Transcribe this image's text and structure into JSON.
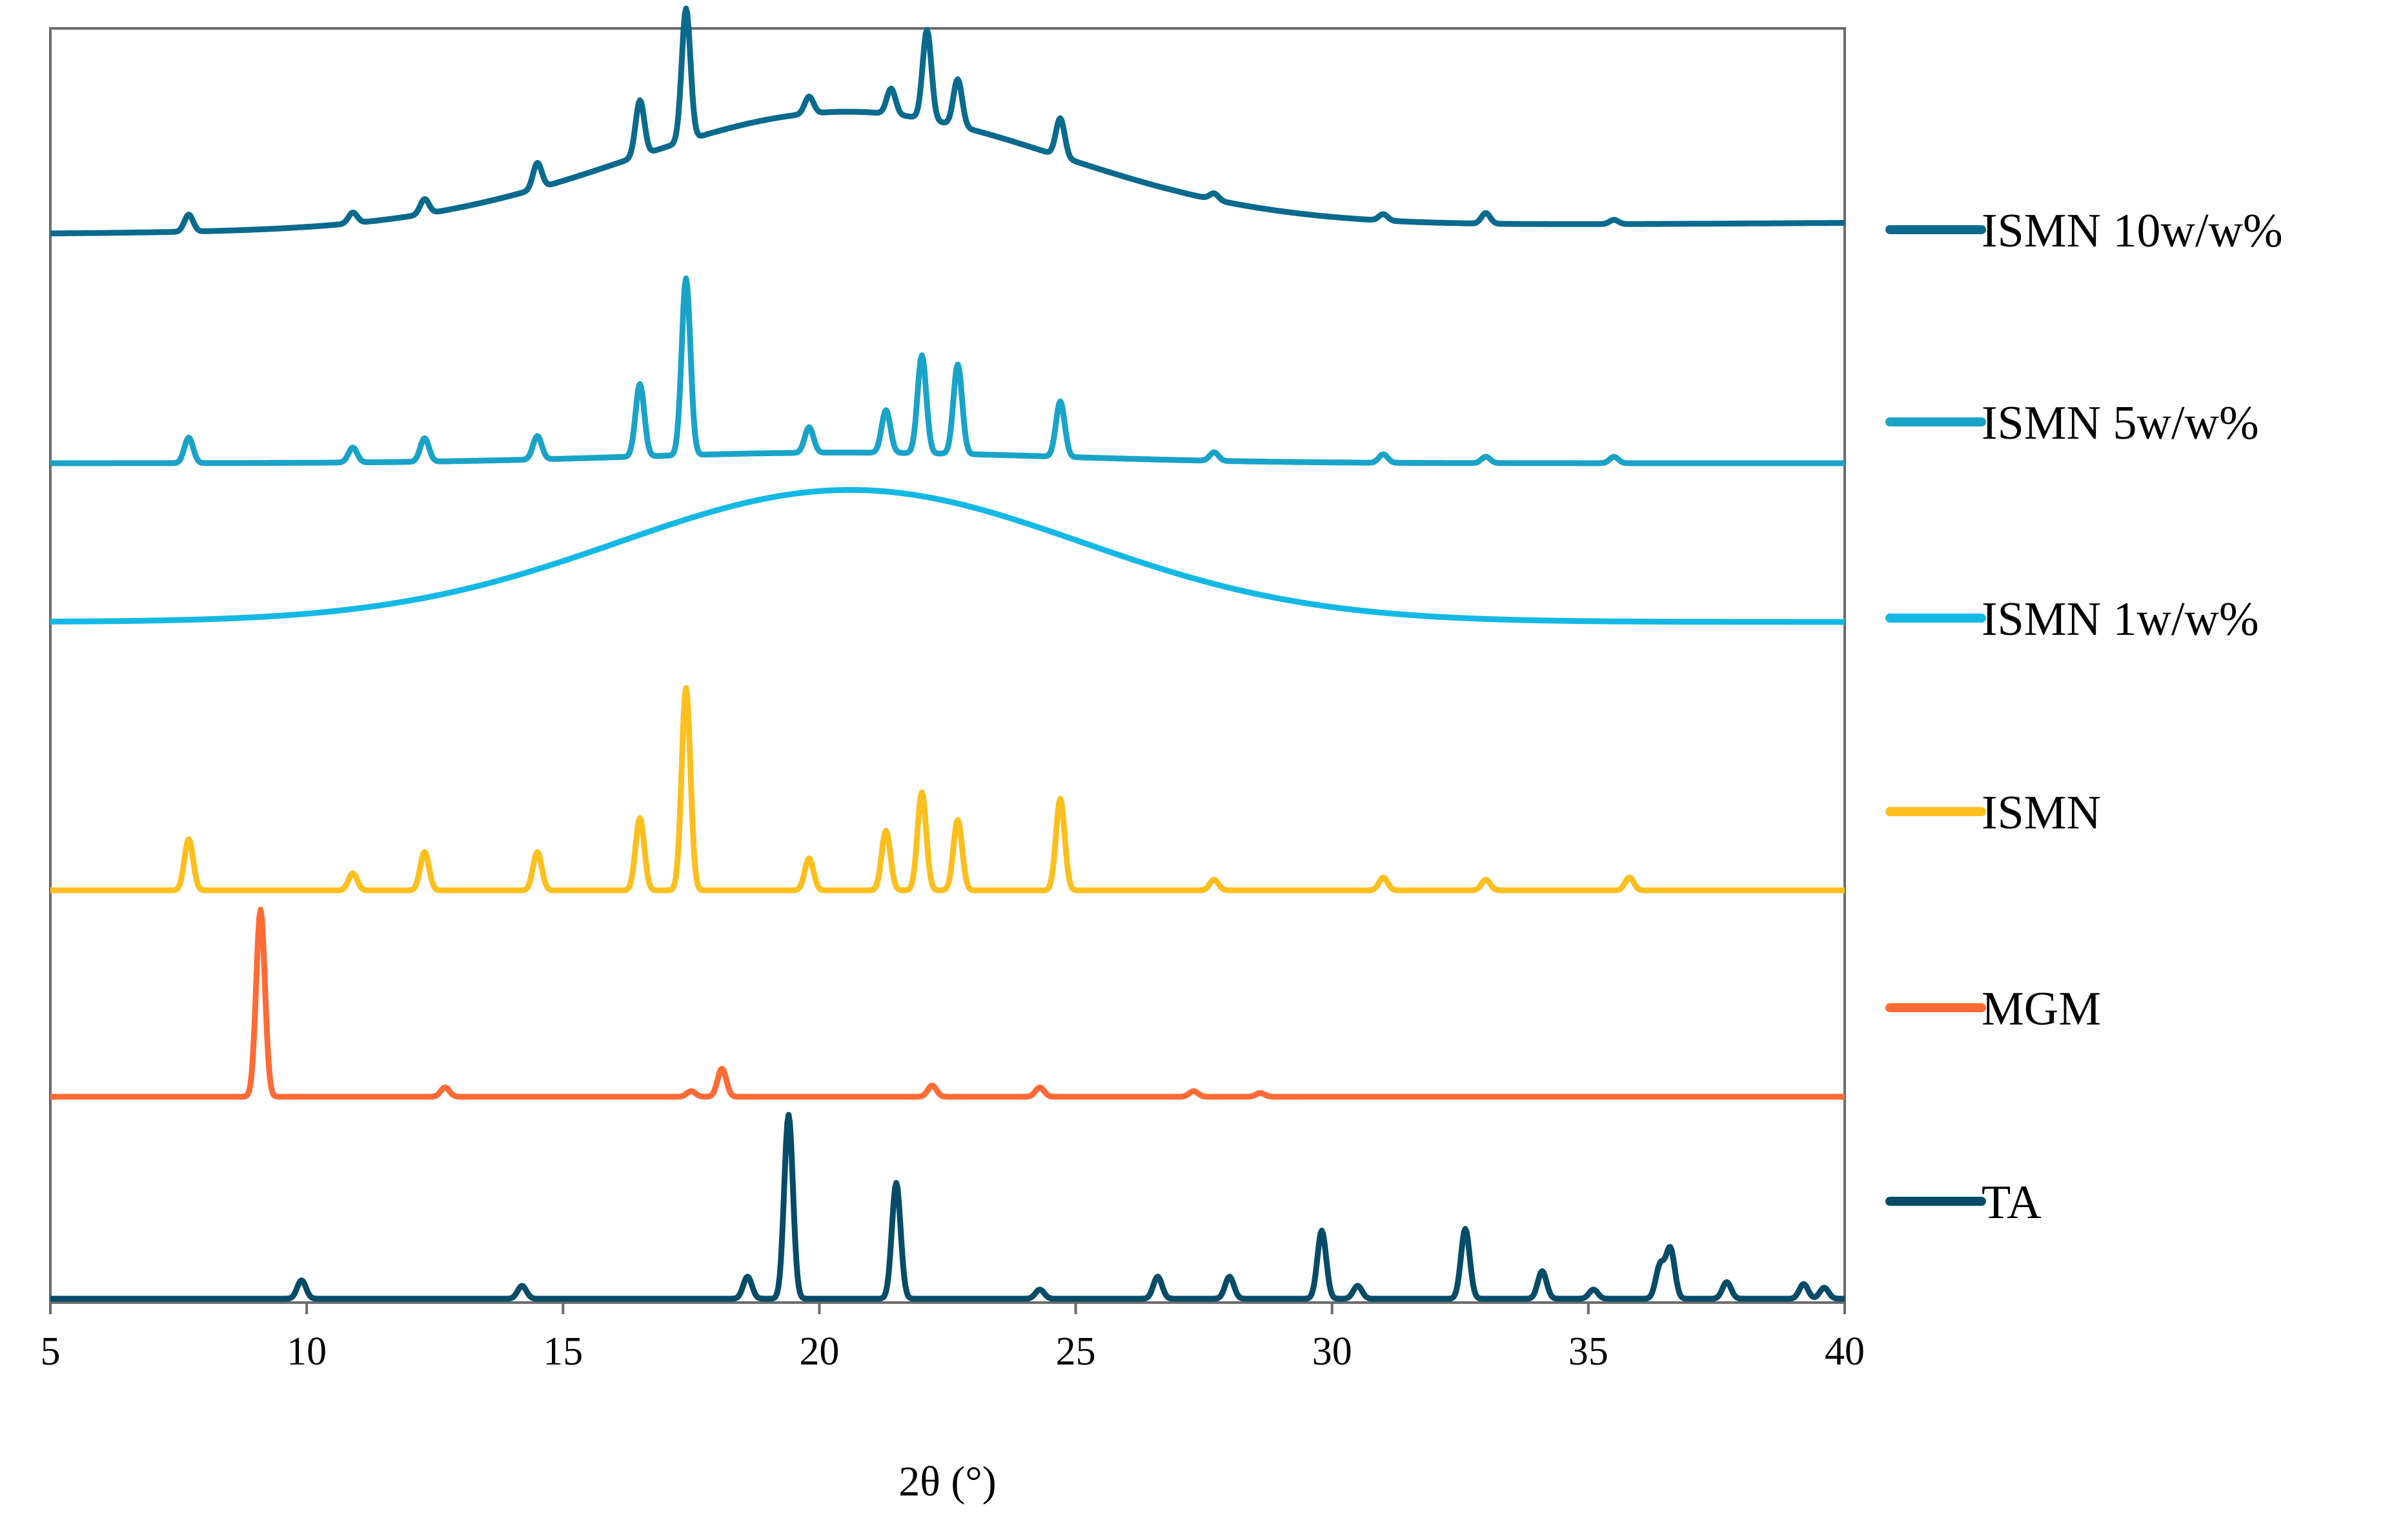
{
  "chart_data": {
    "type": "line",
    "title": "",
    "xlabel": "2θ (°)",
    "ylabel": "",
    "xlim": [
      5,
      40
    ],
    "xticks": [
      5,
      10,
      15,
      20,
      25,
      30,
      35,
      40
    ],
    "yaxis": "stacked offset intensity, no tick labels",
    "grid": false,
    "legend_position": "right",
    "series": [
      {
        "name": "ISMN 10w/w%",
        "color": "#0a6a8e",
        "baseline": {
          "start": 0,
          "end": 0.05,
          "hump": {
            "center": 20.5,
            "width": 4.2,
            "height": 0.55
          }
        },
        "peaks": [
          [
            7.7,
            0.08
          ],
          [
            10.9,
            0.05
          ],
          [
            12.3,
            0.07
          ],
          [
            14.5,
            0.12
          ],
          [
            16.5,
            0.26
          ],
          [
            17.4,
            0.62
          ],
          [
            19.8,
            0.08
          ],
          [
            21.4,
            0.12
          ],
          [
            22.1,
            0.42
          ],
          [
            22.7,
            0.22
          ],
          [
            24.7,
            0.18
          ],
          [
            27.7,
            0.03
          ],
          [
            31,
            0.03
          ],
          [
            33,
            0.05
          ],
          [
            35.5,
            0.02
          ]
        ]
      },
      {
        "name": "ISMN 5w/w%",
        "color": "#1aa3c8",
        "baseline": {
          "start": 0,
          "end": 0,
          "hump": {
            "center": 20.5,
            "width": 4.2,
            "height": 0.05
          }
        },
        "peaks": [
          [
            7.7,
            0.12
          ],
          [
            10.9,
            0.07
          ],
          [
            12.3,
            0.11
          ],
          [
            14.5,
            0.11
          ],
          [
            16.5,
            0.34
          ],
          [
            17.4,
            0.83
          ],
          [
            19.8,
            0.12
          ],
          [
            21.3,
            0.2
          ],
          [
            22.0,
            0.46
          ],
          [
            22.7,
            0.42
          ],
          [
            24.7,
            0.26
          ],
          [
            27.7,
            0.04
          ],
          [
            31,
            0.04
          ],
          [
            33,
            0.03
          ],
          [
            35.5,
            0.03
          ]
        ]
      },
      {
        "name": "ISMN 1w/w%",
        "color": "#14b8e4",
        "baseline": {
          "start": 0,
          "end": 0,
          "hump": {
            "center": 20.6,
            "width": 4.5,
            "height": 0.62
          }
        },
        "peaks": []
      },
      {
        "name": "ISMN",
        "color": "#fbbf1e",
        "baseline": {
          "start": 0,
          "end": 0,
          "hump": {
            "center": 20.5,
            "width": 4.2,
            "height": 0
          }
        },
        "peaks": [
          [
            7.7,
            0.24
          ],
          [
            10.9,
            0.08
          ],
          [
            12.3,
            0.18
          ],
          [
            14.5,
            0.18
          ],
          [
            16.5,
            0.34
          ],
          [
            17.4,
            0.95
          ],
          [
            19.8,
            0.15
          ],
          [
            21.3,
            0.28
          ],
          [
            22.0,
            0.46
          ],
          [
            22.7,
            0.33
          ],
          [
            24.7,
            0.43
          ],
          [
            27.7,
            0.05
          ],
          [
            31,
            0.06
          ],
          [
            33,
            0.05
          ],
          [
            35.8,
            0.06
          ]
        ]
      },
      {
        "name": "MGM",
        "color": "#ff6a35",
        "baseline": {
          "start": 0,
          "end": 0,
          "hump": {
            "center": 20.5,
            "width": 4.2,
            "height": 0
          }
        },
        "peaks": [
          [
            9.1,
            1.0
          ],
          [
            12.7,
            0.05
          ],
          [
            17.5,
            0.03
          ],
          [
            18.1,
            0.15
          ],
          [
            22.2,
            0.06
          ],
          [
            24.3,
            0.05
          ],
          [
            27.3,
            0.03
          ],
          [
            28.6,
            0.02
          ]
        ]
      },
      {
        "name": "TA",
        "color": "#064c68",
        "baseline": {
          "start": 0,
          "end": 0,
          "hump": {
            "center": 20.5,
            "width": 4.2,
            "height": 0
          }
        },
        "peaks": [
          [
            9.9,
            0.1
          ],
          [
            14.2,
            0.07
          ],
          [
            18.6,
            0.12
          ],
          [
            19.4,
            1.0
          ],
          [
            21.5,
            0.63
          ],
          [
            24.3,
            0.05
          ],
          [
            26.6,
            0.12
          ],
          [
            28.0,
            0.12
          ],
          [
            29.8,
            0.37
          ],
          [
            30.5,
            0.07
          ],
          [
            32.6,
            0.38
          ],
          [
            34.1,
            0.15
          ],
          [
            35.1,
            0.05
          ],
          [
            36.4,
            0.18
          ],
          [
            36.6,
            0.27
          ],
          [
            37.7,
            0.09
          ],
          [
            39.2,
            0.08
          ],
          [
            39.6,
            0.06
          ]
        ]
      }
    ]
  }
}
